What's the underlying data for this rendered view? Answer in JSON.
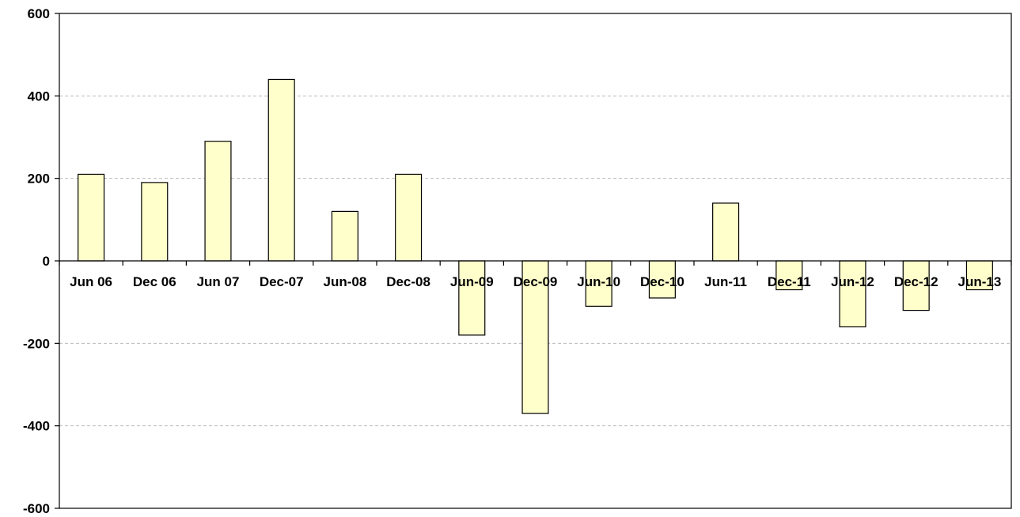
{
  "chart_data": {
    "type": "bar",
    "categories": [
      "Jun 06",
      "Dec 06",
      "Jun 07",
      "Dec-07",
      "Jun-08",
      "Dec-08",
      "Jun-09",
      "Dec-09",
      "Jun-10",
      "Dec-10",
      "Jun-11",
      "Dec-11",
      "Jun-12",
      "Dec-12",
      "Jun-13"
    ],
    "values": [
      210,
      190,
      290,
      440,
      120,
      210,
      -180,
      -370,
      -110,
      -90,
      140,
      -70,
      -160,
      -120,
      -70
    ],
    "title": "",
    "xlabel": "",
    "ylabel": "",
    "ylim": [
      -600,
      600
    ],
    "yticks": [
      -600,
      -400,
      -200,
      0,
      200,
      400,
      600
    ],
    "grid": true,
    "legend": "none",
    "colors": {
      "bar_fill": "#FFFFCC",
      "bar_stroke": "#000000",
      "grid": "#BBBBBB",
      "axis": "#000000"
    }
  }
}
